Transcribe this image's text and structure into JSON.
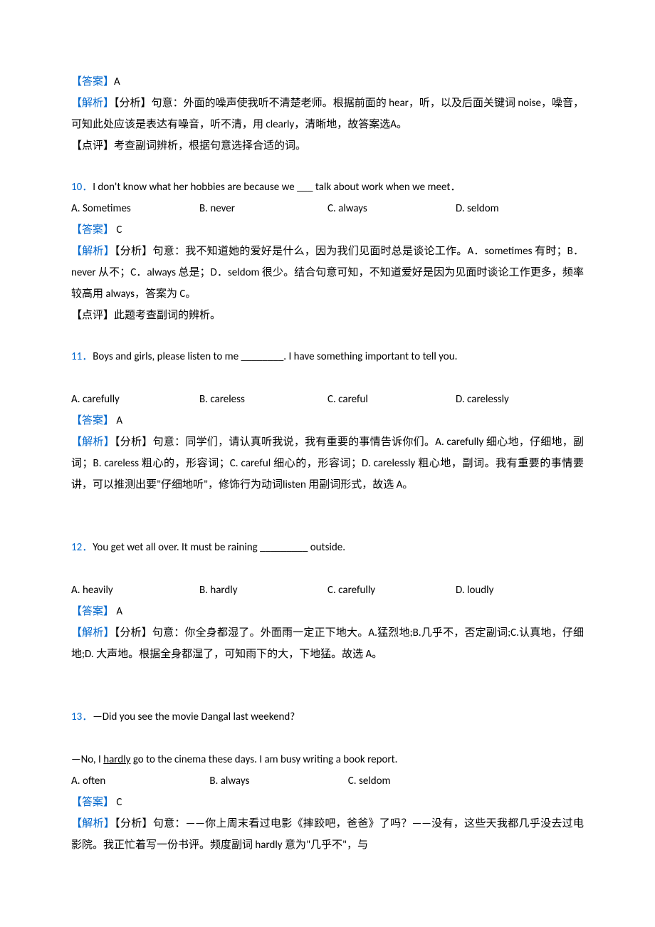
{
  "colors": {
    "link_blue": "#0066cc",
    "text": "#000000",
    "bg": "#ffffff"
  },
  "typography": {
    "body_fontsize_pt": 11,
    "line_height": 2.0,
    "font_family": "SimSun, Calibri, sans-serif"
  },
  "labels": {
    "answer": "【答案】",
    "analysis": "【解析】",
    "analysis_sub": "【分析】",
    "comment": "【点评】"
  },
  "q9_tail": {
    "answer_letter": "A",
    "analysis": "句意：外面的噪声使我听不清楚老师。根据前面的 hear，听，以及后面关键词 noise，噪音，可知此处应该是表达有噪音，听不清，用 clearly，清晰地，故答案选A。",
    "comment": "考查副词辨析，根据句意选择合适的词。"
  },
  "q10": {
    "number": "10．",
    "stem": "I don't know what her hobbies are because we ___ talk about work when we meet．",
    "options": [
      {
        "key": "A",
        "text": "A. Sometimes"
      },
      {
        "key": "B",
        "text": "B. never"
      },
      {
        "key": "C",
        "text": "C. always"
      },
      {
        "key": "D",
        "text": "D. seldom"
      }
    ],
    "answer_letter": " C",
    "analysis": "句意：我不知道她的爱好是什么，因为我们见面时总是谈论工作。A．sometimes 有时；B．never 从不；C．always 总是；D．seldom 很少。结合句意可知，不知道爱好是因为见面时谈论工作更多，频率较高用 always，答案为 C。",
    "comment": "此题考查副词的辨析。"
  },
  "q11": {
    "number": "11．",
    "stem": "Boys and girls, please listen to me ________. I have something important to tell you.",
    "options": [
      {
        "key": "A",
        "text": "A. carefully"
      },
      {
        "key": "B",
        "text": "B. careless"
      },
      {
        "key": "C",
        "text": "C. careful"
      },
      {
        "key": "D",
        "text": "D. carelessly"
      }
    ],
    "answer_letter": " A",
    "analysis": "句意：同学们，请认真听我说，我有重要的事情告诉你们。A. carefully 细心地，仔细地，副词；B. careless 粗心的，形容词；C. careful 细心的，形容词；D. carelessly 粗心地，副词。我有重要的事情要讲，可以推测出要\"仔细地听\"，修饰行为动词listen 用副词形式，故选 A。"
  },
  "q12": {
    "number": "12．",
    "stem": "You get wet all over. It must be raining _________ outside.",
    "options": [
      {
        "key": "A",
        "text": "A. heavily"
      },
      {
        "key": "B",
        "text": "B. hardly"
      },
      {
        "key": "C",
        "text": "C. carefully"
      },
      {
        "key": "D",
        "text": "D. loudly"
      }
    ],
    "answer_letter": " A",
    "analysis": "句意：你全身都湿了。外面雨一定正下地大。A.猛烈地;B.几乎不，否定副词;C.认真地，仔细地;D. 大声地。根据全身都湿了，可知雨下的大，下地猛。故选 A。"
  },
  "q13": {
    "number": "13．",
    "stem1": "—Did you see the movie Dangal last weekend?",
    "stem2_pre": "—No, I ",
    "stem2_underline": "hardly",
    "stem2_post": " go to the cinema these days. I am busy writing a book report.",
    "options": [
      {
        "key": "A",
        "text": "A. often"
      },
      {
        "key": "B",
        "text": "B. always"
      },
      {
        "key": "C",
        "text": "C. seldom"
      }
    ],
    "answer_letter": " C",
    "analysis": "句意：——你上周末看过电影《摔跤吧，爸爸》了吗？——没有，这些天我都几乎没去过电影院。我正忙着写一份书评。频度副词 hardly 意为\"几乎不\"，与"
  }
}
